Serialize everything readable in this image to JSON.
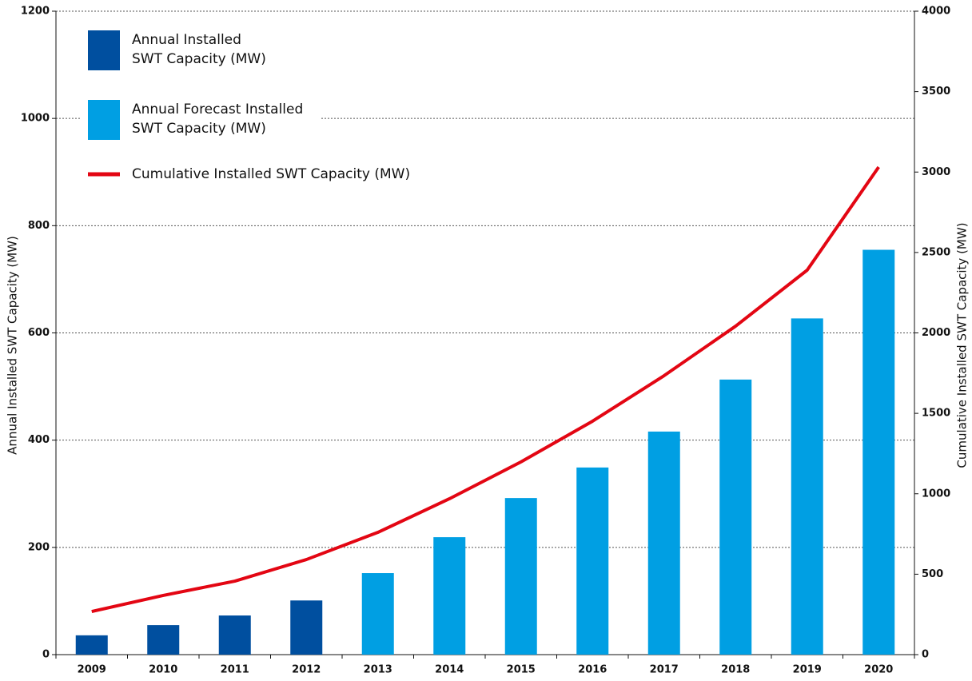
{
  "chart_data": {
    "type": "bar",
    "y_label": "Annual Installed SWT Capacity (MW)",
    "y2_label": "Cumulative Installed SWT Capacity (MW)",
    "categories": [
      "2009",
      "2010",
      "2011",
      "2012",
      "2013",
      "2014",
      "2015",
      "2016",
      "2017",
      "2018",
      "2019",
      "2020"
    ],
    "series": [
      {
        "name": "Annual Installed SWT Capacity (MW)",
        "color": "#004f9f",
        "values": [
          36,
          55,
          73,
          101,
          null,
          null,
          null,
          null,
          null,
          null,
          null,
          null
        ]
      },
      {
        "name": "Annual Forecast Installed SWT Capacity (MW)",
        "color": "#009fe3",
        "values": [
          null,
          null,
          null,
          null,
          152,
          219,
          292,
          349,
          416,
          513,
          627,
          755
        ]
      },
      {
        "name": "Cumulative Installed SWT Capacity (MW)",
        "color": "#e30613",
        "type": "line",
        "axis": "y2",
        "values": [
          268,
          368,
          457,
          591,
          760,
          969,
          1198,
          1451,
          1734,
          2042,
          2390,
          3031
        ]
      }
    ],
    "ylim": [
      0,
      1200
    ],
    "yticks": [
      0,
      200,
      400,
      600,
      800,
      1000,
      1200
    ],
    "y2lim": [
      0,
      4000
    ],
    "y2ticks": [
      0,
      500,
      1000,
      1500,
      2000,
      2500,
      3000,
      3500,
      4000
    ],
    "grid": true
  }
}
